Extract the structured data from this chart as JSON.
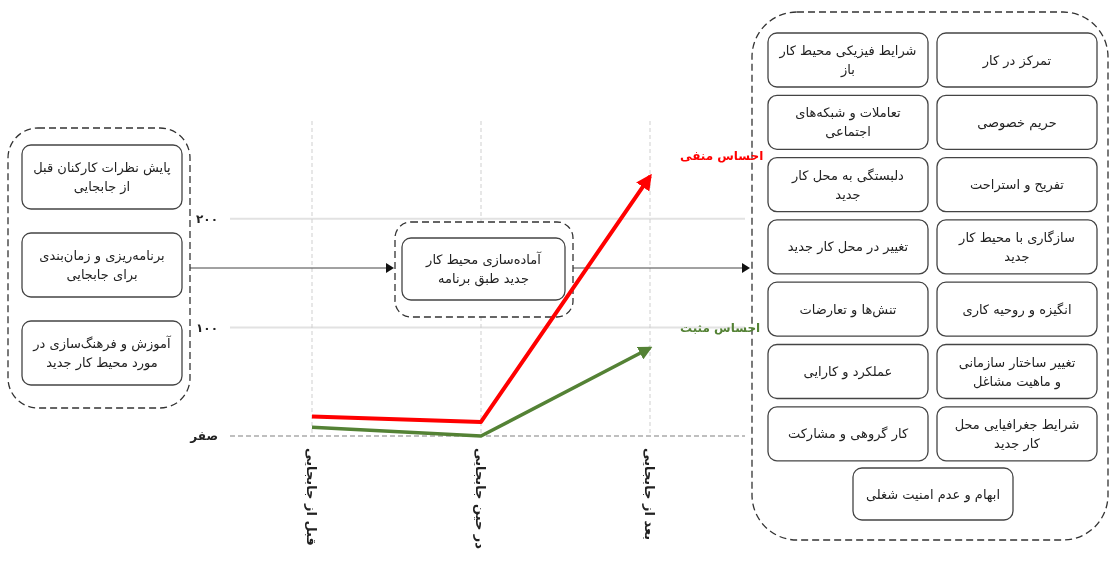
{
  "chart_data": {
    "type": "line",
    "categories": [
      "قبل از جابجایی",
      "در حین جابجایی",
      "بعد از جابجایی"
    ],
    "series": [
      {
        "name": "احساس منفی",
        "color": "#ff0000",
        "values": [
          18,
          13,
          239
        ]
      },
      {
        "name": "احساس مثبت",
        "color": "#548235",
        "values": [
          8,
          0,
          81
        ]
      }
    ],
    "ylim": [
      0,
      290
    ],
    "yticks": [
      {
        "value": 0,
        "label": "صفر"
      },
      {
        "value": 100,
        "label": "۱۰۰"
      },
      {
        "value": 200,
        "label": "۲۰۰"
      }
    ],
    "grid": true,
    "annotations": [
      "پایش نظرات کارکنان قبل از جابجایی",
      "برنامه‌ریزی و زمان‌بندی برای جابجایی",
      "آموزش و فرهنگ‌سازی در مورد محیط کار جدید",
      "آماده‌سازی محیط کار جدید طبق برنامه",
      "تمرکز در کار",
      "شرایط فیزیکی محیط کار باز",
      "حریم خصوصی",
      "تعاملات و شبکه‌های اجتماعی",
      "تفریح و استراحت",
      "دلبستگی به محل کار جدید",
      "سازگاری با محیط کار جدید",
      "تغییر در محل کار جدید",
      "انگیزه و روحیه کاری",
      "تنش‌ها و تعارضات",
      "تغییر ساختار سازمانی و ماهیت مشاغل",
      "عملکرد و کارایی",
      "شرایط جغرافیایی محل کار جدید",
      "کار گروهی و مشارکت",
      "ابهام و عدم امنیت شغلی"
    ]
  }
}
